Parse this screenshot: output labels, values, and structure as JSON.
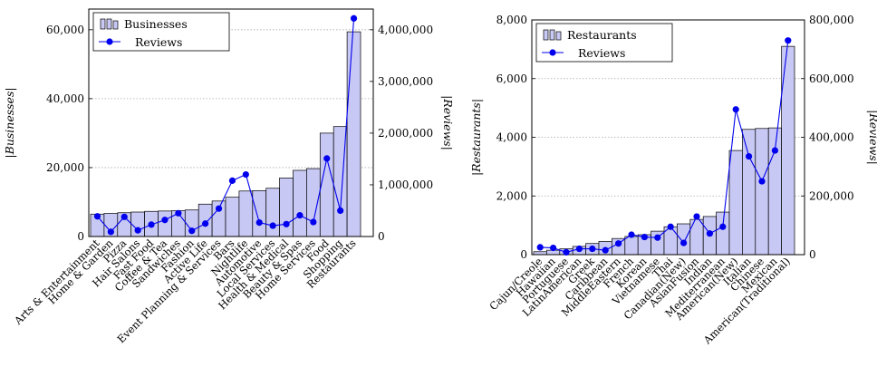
{
  "chart_data": [
    {
      "type": "bar+line",
      "ylabel": "|Businesses|",
      "y2label": "|Reviews|",
      "ylim": [
        0,
        66000
      ],
      "y2lim": [
        0,
        4400000
      ],
      "yticks": [
        0,
        20000,
        40000,
        60000
      ],
      "ytick_labels": [
        "0",
        "20,000",
        "40,000",
        "60,000"
      ],
      "y2ticks": [
        0,
        1000000,
        2000000,
        3000000,
        4000000
      ],
      "y2tick_labels": [
        "0",
        "1,000,000",
        "2,000,000",
        "3,000,000",
        "4,000,000"
      ],
      "legend_position": "top-left",
      "categories": [
        "Arts & Entertainment",
        "Home & Garden",
        "Pizza",
        "Hair Salons",
        "Fast Food",
        "Coffee & Tea",
        "Sandwiches",
        "Fashion",
        "Active Life",
        "Event Planning & Services",
        "Bars",
        "Nightlife",
        "Automotive",
        "Local Services",
        "Health & Medical",
        "Beauty & Spas",
        "Home Services",
        "Food",
        "Shopping",
        "Restaurants"
      ],
      "series": [
        {
          "name": "Businesses",
          "kind": "bar",
          "axis": "left",
          "color": "#c8c8f4",
          "values": [
            6500,
            6700,
            6900,
            7100,
            7300,
            7400,
            7500,
            7700,
            9400,
            10300,
            11400,
            13200,
            13300,
            14000,
            17000,
            19200,
            19700,
            30000,
            31900,
            59400
          ]
        },
        {
          "name": "Reviews",
          "kind": "line",
          "axis": "right",
          "color": "#0000ee",
          "values": [
            390000,
            90000,
            380000,
            120000,
            230000,
            320000,
            450000,
            110000,
            250000,
            540000,
            1080000,
            1200000,
            270000,
            210000,
            240000,
            410000,
            280000,
            1510000,
            500000,
            4220000
          ]
        }
      ]
    },
    {
      "type": "bar+line",
      "ylabel": "|Restaurants|",
      "y2label": "|Reviews|",
      "ylim": [
        0,
        8000
      ],
      "y2lim": [
        0,
        800000
      ],
      "yticks": [
        0,
        2000,
        4000,
        6000,
        8000
      ],
      "ytick_labels": [
        "0",
        "2,000",
        "4,000",
        "6,000",
        "8,000"
      ],
      "y2ticks": [
        0,
        200000,
        400000,
        600000,
        800000
      ],
      "y2tick_labels": [
        "0",
        "200,000",
        "400,000",
        "600,000",
        "800,000"
      ],
      "legend_position": "top-left",
      "categories": [
        "Cajun/Creole",
        "Hawaiian",
        "Portuguese",
        "LatinAmerican",
        "Greek",
        "Caribbean",
        "MiddleEastern",
        "French",
        "Korean",
        "Vietnamese",
        "Thai",
        "Canadian(New)",
        "AsianFusion",
        "Indian",
        "Mediterranean",
        "American(New)",
        "Italian",
        "Chinese",
        "Mexican",
        "American(Traditional)"
      ],
      "series": [
        {
          "name": "Restaurants",
          "kind": "bar",
          "axis": "left",
          "color": "#c8c8f4",
          "values": [
            100,
            150,
            200,
            280,
            380,
            450,
            550,
            620,
            680,
            800,
            950,
            1050,
            1200,
            1300,
            1450,
            3550,
            4270,
            4300,
            4320,
            7100
          ]
        },
        {
          "name": "Reviews",
          "kind": "line",
          "axis": "right",
          "color": "#0000ee",
          "values": [
            25000,
            23000,
            8000,
            20000,
            20000,
            15000,
            38000,
            68000,
            60000,
            58000,
            95000,
            40000,
            130000,
            72000,
            95000,
            495000,
            335000,
            250000,
            355000,
            730000
          ]
        }
      ]
    }
  ]
}
